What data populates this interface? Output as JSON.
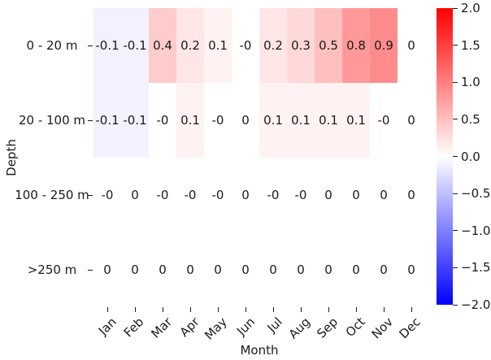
{
  "figure": {
    "background_color": "#ffffff",
    "text_color": "#1a1a1a"
  },
  "chart_data": {
    "type": "heatmap",
    "title": "",
    "xlabel": "Month",
    "ylabel": "Depth",
    "x_categories": [
      "Jan",
      "Feb",
      "Mar",
      "Apr",
      "May",
      "Jun",
      "Jul",
      "Aug",
      "Sep",
      "Oct",
      "Nov",
      "Dec"
    ],
    "y_categories": [
      "0 - 20 m",
      "20 - 100 m",
      "100 - 250 m",
      ">250 m"
    ],
    "cells": [
      [
        "-0.1",
        "-0.1",
        "0.4",
        "0.2",
        "0.1",
        "-0",
        "0.2",
        "0.3",
        "0.5",
        "0.8",
        "0.9",
        "0"
      ],
      [
        "-0.1",
        "-0.1",
        "-0",
        "0.1",
        "-0",
        "0",
        "0.1",
        "0.1",
        "0.1",
        "0.1",
        "-0",
        "0"
      ],
      [
        "-0",
        "0",
        "-0",
        "-0",
        "-0",
        "0",
        "-0",
        "-0",
        "0",
        "0",
        "0",
        "0"
      ],
      [
        "0",
        "0",
        "0",
        "0",
        "0",
        "0",
        "0",
        "0",
        "0",
        "0",
        "0",
        "0"
      ]
    ],
    "vmin": -2.0,
    "vmax": 2.0,
    "colormap": {
      "name": "bwr",
      "negative_color": "#0000ff",
      "zero_color": "#ffffff",
      "positive_color": "#ff0000"
    },
    "colorbar_ticks": [
      "2.0",
      "1.5",
      "1.0",
      "0.5",
      "0.0",
      "−0.5",
      "−1.0",
      "−1.5",
      "−2.0"
    ],
    "grid": false,
    "legend_position": "colorbar-right",
    "annotations_shown": true
  }
}
